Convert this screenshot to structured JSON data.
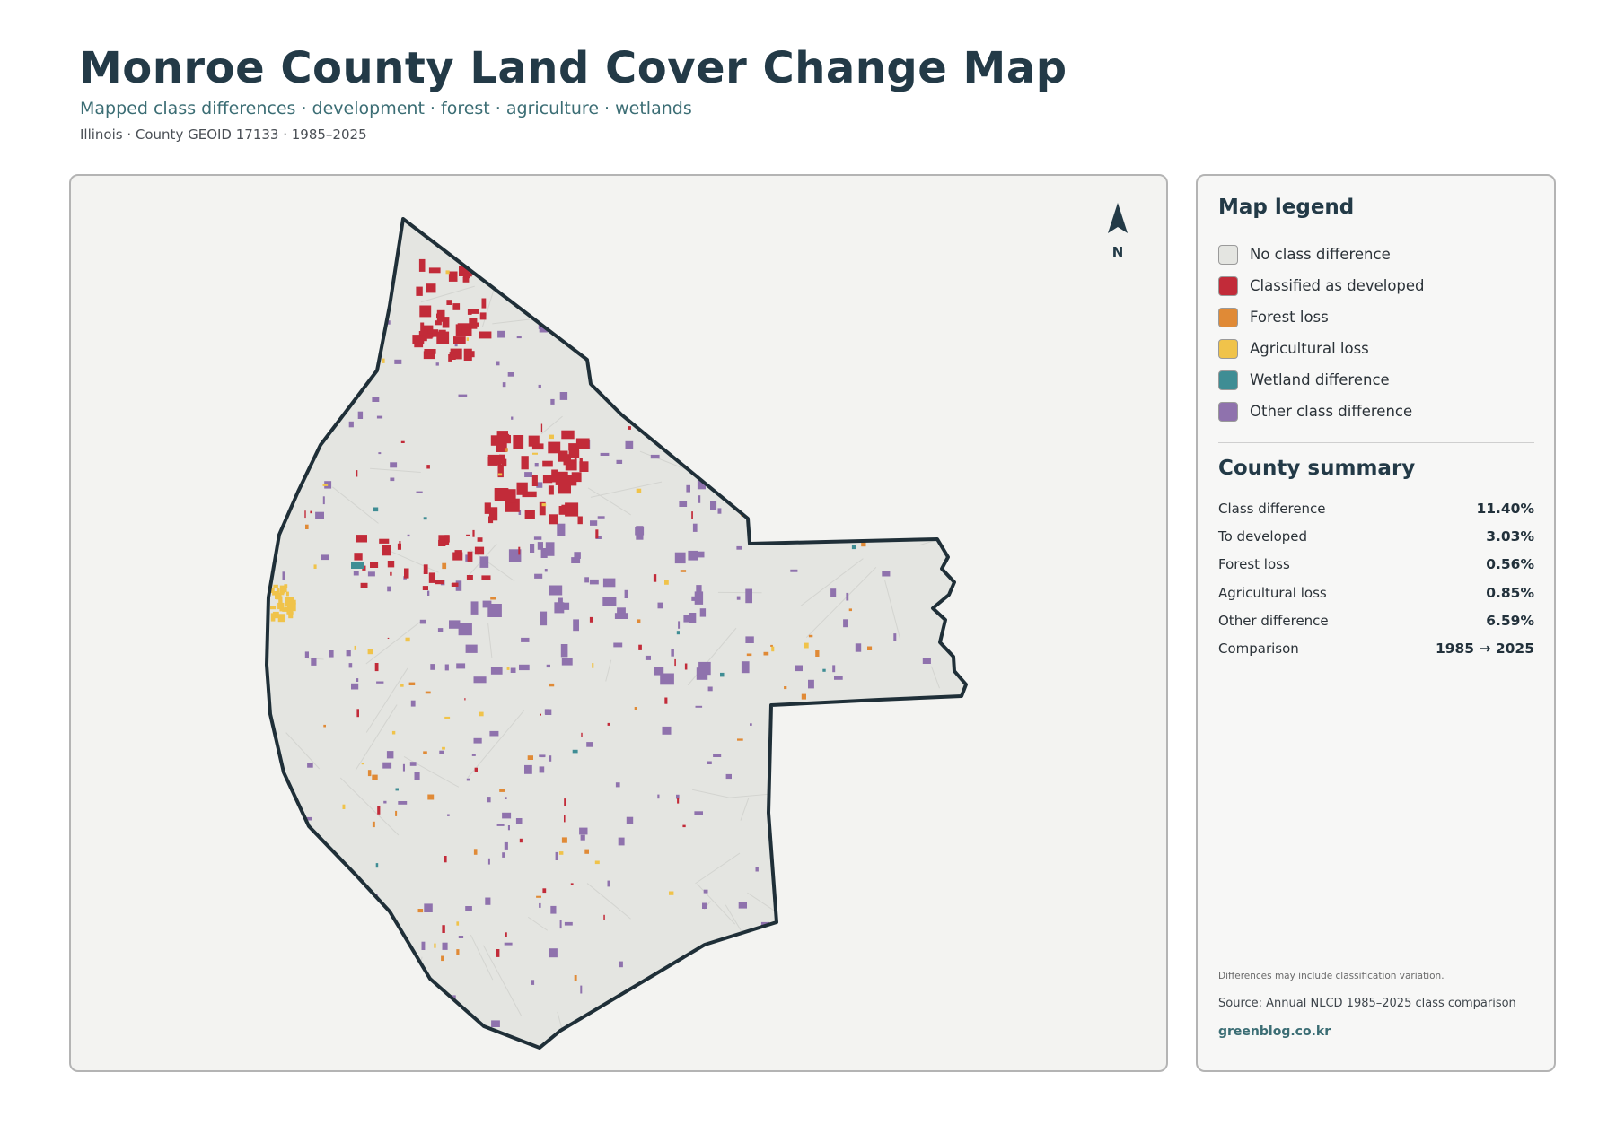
{
  "header": {
    "title": "Monroe County Land Cover Change Map",
    "subtitle": "Mapped class differences · development · forest · agriculture · wetlands",
    "meta": "Illinois · County GEOID 17133 · 1985–2025"
  },
  "map": {
    "north_label": "N",
    "colors": {
      "fill": "#e4e5e1",
      "outline": "#1f2f38",
      "developed": "#c22b39",
      "forest": "#e08a36",
      "agricultural": "#f0c34a",
      "wetland": "#3f8d94",
      "other": "#8f72ad"
    }
  },
  "legend": {
    "heading": "Map legend",
    "items": [
      {
        "label": "No class difference",
        "color": "#e4e5e1"
      },
      {
        "label": "Classified as developed",
        "color": "#c22b39"
      },
      {
        "label": "Forest loss",
        "color": "#e08a36"
      },
      {
        "label": "Agricultural loss",
        "color": "#f0c34a"
      },
      {
        "label": "Wetland difference",
        "color": "#3f8d94"
      },
      {
        "label": "Other class difference",
        "color": "#8f72ad"
      }
    ]
  },
  "summary": {
    "heading": "County summary",
    "rows": [
      {
        "label": "Class difference",
        "value": "11.40%"
      },
      {
        "label": "To developed",
        "value": "3.03%"
      },
      {
        "label": "Forest loss",
        "value": "0.56%"
      },
      {
        "label": "Agricultural loss",
        "value": "0.85%"
      },
      {
        "label": "Other difference",
        "value": "6.59%"
      },
      {
        "label": "Comparison",
        "value": "1985 → 2025"
      }
    ]
  },
  "footer": {
    "note": "Differences may include classification variation.",
    "source": "Source: Annual NLCD 1985–2025 class comparison",
    "brand": "greenblog.co.kr"
  }
}
